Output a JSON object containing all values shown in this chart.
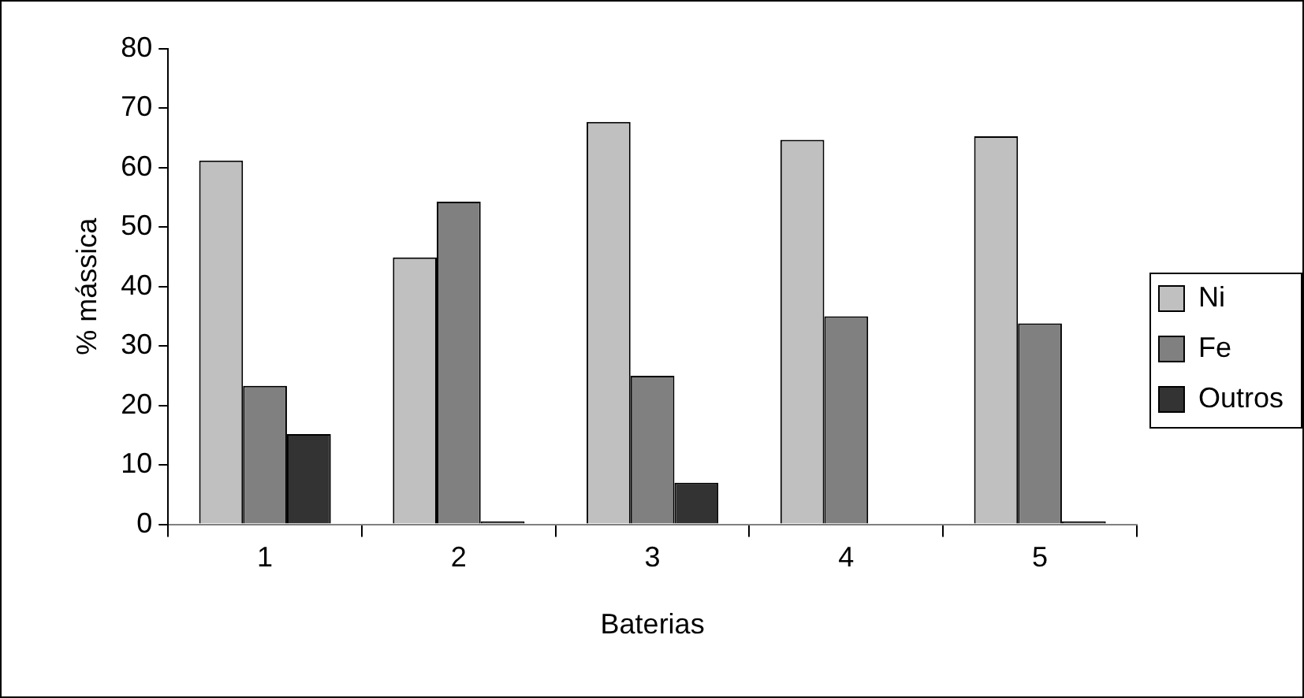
{
  "chart_data": {
    "type": "bar",
    "xlabel": "Baterias",
    "ylabel": "% mássica",
    "categories": [
      "1",
      "2",
      "3",
      "4",
      "5"
    ],
    "series": [
      {
        "name": "Ni",
        "color": "#c0c0c0",
        "values": [
          61.2,
          44.9,
          67.7,
          64.7,
          65.3
        ]
      },
      {
        "name": "Fe",
        "color": "#808080",
        "values": [
          23.3,
          54.3,
          25,
          35,
          33.8
        ]
      },
      {
        "name": "Outros",
        "color": "#333333",
        "values": [
          15.2,
          0.5,
          7,
          0,
          0.5
        ]
      }
    ],
    "ylim": [
      0,
      80
    ],
    "yticks": [
      0,
      10,
      20,
      30,
      40,
      50,
      60,
      70,
      80
    ],
    "grid": false,
    "legend": "right"
  }
}
